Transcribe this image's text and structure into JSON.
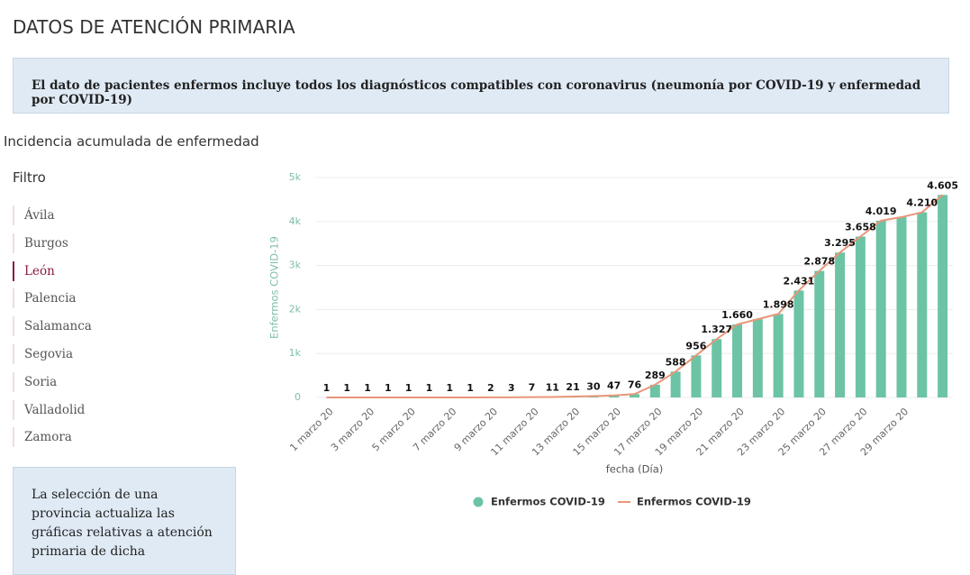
{
  "header": {
    "title": "DATOS DE ATENCIÓN PRIMARIA"
  },
  "notice": "El dato de pacientes enfermos incluye todos los diagnósticos compatibles con coronavirus (neumonía por COVID-19 y enfermedad por COVID-19)",
  "section_title": "Incidencia acumulada de enfermedad",
  "filter": {
    "title": "Filtro",
    "options": [
      "Ávila",
      "Burgos",
      "León",
      "Palencia",
      "Salamanca",
      "Segovia",
      "Soria",
      "Valladolid",
      "Zamora"
    ],
    "selected": 2
  },
  "info_box": "La selección de una provincia actualiza las gráficas relativas a atención primaria de dicha",
  "chart_data": {
    "type": "bar",
    "y_label": "Enfermos COVID-19",
    "x_label": "fecha (Día)",
    "categories": [
      "1 marzo 20",
      null,
      "3 marzo 20",
      null,
      "5 marzo 20",
      null,
      "7 marzo 20",
      null,
      "9 marzo 20",
      null,
      "11 marzo 20",
      null,
      "13 marzo 20",
      null,
      "15 marzo 20",
      null,
      "17 marzo 20",
      null,
      "19 marzo 20",
      null,
      "21 marzo 20",
      null,
      "23 marzo 20",
      null,
      "25 marzo 20",
      null,
      "27 marzo 20",
      null,
      "29 marzo 20",
      null,
      null
    ],
    "ylim": [
      0,
      5000
    ],
    "yticks": [
      0,
      {
        "value": 1000,
        "label": "1k"
      },
      {
        "value": 2000,
        "label": "2k"
      },
      {
        "value": 3000,
        "label": "3k"
      },
      {
        "value": 4000,
        "label": "4k"
      },
      {
        "value": 5000,
        "label": "5k"
      }
    ],
    "grid": true,
    "legend": "bottom",
    "series": [
      {
        "name": "Enfermos COVID-19",
        "type": "bar",
        "color": "#6cc4a4",
        "values": [
          1,
          1,
          1,
          1,
          1,
          1,
          1,
          1,
          2,
          3,
          7,
          11,
          21,
          30,
          47,
          76,
          289,
          588,
          956,
          1327,
          1660,
          1780,
          1898,
          2431,
          2878,
          3295,
          3658,
          4019,
          4100,
          4210,
          4605
        ],
        "value_labels": [
          "1",
          "1",
          "1",
          "1",
          "1",
          "1",
          "1",
          "1",
          "2",
          "3",
          "7",
          "11",
          "21",
          "30",
          "47",
          "76",
          "289",
          "588",
          "956",
          "1.327",
          "1.660",
          null,
          "1.898",
          "2.431",
          "2.878",
          "3.295",
          "3.658",
          "4.019",
          null,
          "4.210",
          "4.605"
        ]
      },
      {
        "name": "Enfermos COVID-19",
        "type": "line",
        "color": "#e8967a",
        "values": [
          1,
          1,
          1,
          1,
          1,
          1,
          1,
          1,
          2,
          3,
          7,
          11,
          21,
          30,
          47,
          76,
          289,
          588,
          956,
          1327,
          1660,
          1780,
          1898,
          2431,
          2878,
          3295,
          3658,
          4019,
          4100,
          4210,
          4605
        ]
      }
    ]
  }
}
